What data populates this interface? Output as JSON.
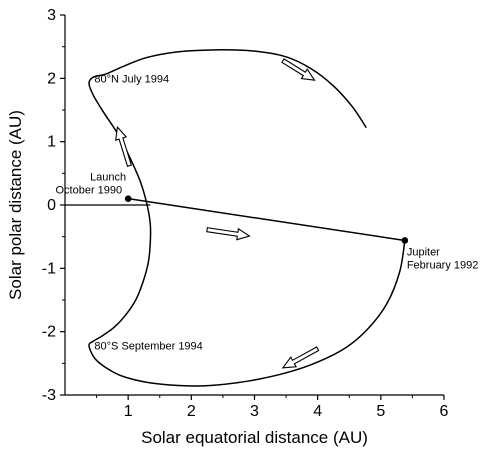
{
  "chart_data": {
    "type": "line",
    "title": "",
    "xlabel": "Solar equatorial distance (AU)",
    "ylabel": "Solar polar distance (AU)",
    "xlim": [
      0,
      6
    ],
    "ylim": [
      -3,
      3
    ],
    "xticks": [
      1,
      2,
      3,
      4,
      5,
      6
    ],
    "yticks": [
      -3,
      -2,
      -1,
      0,
      1,
      2,
      3
    ],
    "grid": false,
    "series": [
      {
        "x": [
          4.77,
          4.55,
          4.25,
          3.9,
          3.5,
          3.0,
          2.4,
          1.8,
          1.3,
          0.95,
          0.65,
          0.45,
          0.38,
          0.45,
          0.62,
          0.85,
          1.05,
          1.2,
          1.3,
          1.35,
          1.35,
          1.32,
          1.24,
          1.12,
          0.95,
          0.78,
          0.6,
          0.45,
          0.38,
          0.47,
          0.65,
          0.9,
          1.3,
          1.8,
          2.3,
          2.9,
          3.5,
          4.0,
          4.45,
          4.8,
          5.1,
          5.3,
          5.38
        ],
        "y": [
          1.22,
          1.55,
          1.88,
          2.15,
          2.34,
          2.43,
          2.45,
          2.42,
          2.33,
          2.2,
          2.07,
          2.02,
          1.92,
          1.73,
          1.45,
          1.1,
          0.7,
          0.35,
          0.0,
          -0.3,
          -0.6,
          -0.9,
          -1.2,
          -1.5,
          -1.75,
          -1.93,
          -2.06,
          -2.15,
          -2.22,
          -2.42,
          -2.57,
          -2.7,
          -2.8,
          -2.85,
          -2.85,
          -2.78,
          -2.65,
          -2.48,
          -2.25,
          -1.95,
          -1.55,
          -1.05,
          -0.56
        ]
      },
      {
        "x": [
          1.0,
          5.38
        ],
        "y": [
          0.1,
          -0.56
        ]
      }
    ],
    "points": [
      {
        "label_1": "Launch",
        "label_2": "October 1990",
        "x": 1.0,
        "y": 0.1
      },
      {
        "label_1": "Jupiter",
        "label_2": "February 1992",
        "x": 5.38,
        "y": -0.56
      }
    ],
    "annotations": [
      {
        "text": "80°N July 1994",
        "x": 0.45,
        "y": 2.0
      },
      {
        "text": "80°S September 1994",
        "x": 0.45,
        "y": -2.22
      }
    ],
    "arrows": [
      {
        "x1": 3.45,
        "y1": 2.28,
        "x2": 3.95,
        "y2": 1.97
      },
      {
        "x1": 1.02,
        "y1": 0.62,
        "x2": 0.83,
        "y2": 1.23
      },
      {
        "x1": 2.25,
        "y1": -0.39,
        "x2": 2.92,
        "y2": -0.49
      },
      {
        "x1": 4.0,
        "y1": -2.27,
        "x2": 3.45,
        "y2": -2.57
      }
    ]
  }
}
